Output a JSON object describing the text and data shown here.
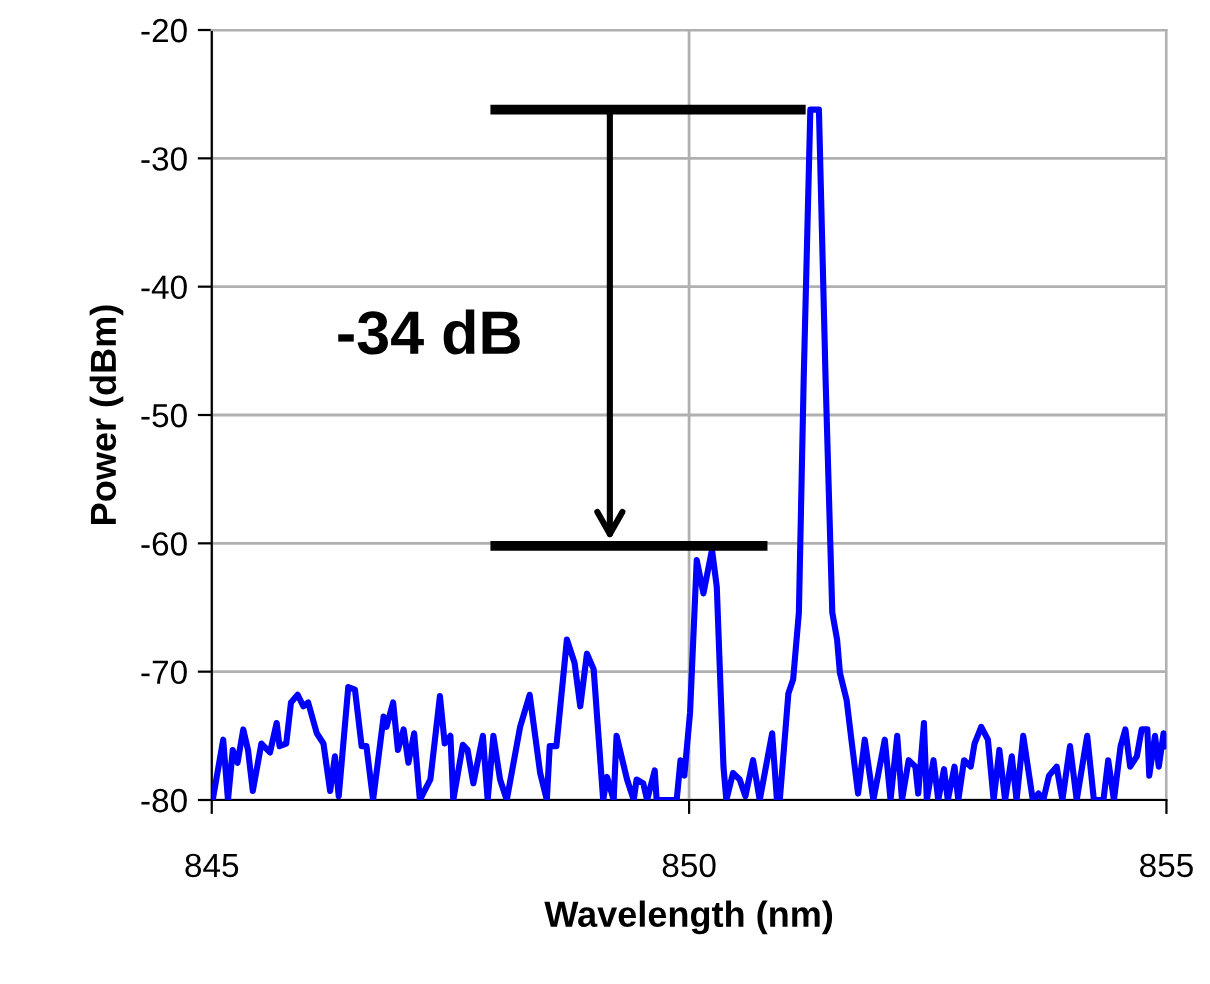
{
  "chart_data": {
    "type": "line",
    "xlabel": "Wavelength (nm)",
    "ylabel": "Power (dBm)",
    "xlim": [
      845,
      855
    ],
    "xticks": [
      845,
      850,
      855
    ],
    "ylim": [
      -80,
      -20
    ],
    "yticks": [
      -80,
      -70,
      -60,
      -50,
      -40,
      -30,
      -20
    ],
    "grid": true,
    "marker": "none",
    "line_style": "solid",
    "annotations": [
      "-34 dB"
    ],
    "ref_lines": [
      {
        "axis": "y",
        "value": -26.2,
        "color": "#000000"
      },
      {
        "axis": "y",
        "value": -60.2,
        "color": "#000000"
      }
    ],
    "series": [
      {
        "color": "#0000ff",
        "x": [
          845.0,
          845.01,
          845.12,
          845.17,
          845.22,
          845.27,
          845.33,
          845.38,
          845.43,
          845.52,
          845.61,
          845.68,
          845.71,
          845.78,
          845.83,
          845.9,
          845.96,
          846.01,
          846.1,
          846.17,
          846.24,
          846.29,
          846.33,
          846.43,
          846.5,
          846.57,
          846.62,
          846.69,
          846.8,
          846.83,
          846.9,
          846.95,
          847.01,
          847.06,
          847.12,
          847.18,
          847.29,
          847.39,
          847.44,
          847.5,
          847.53,
          847.63,
          847.68,
          847.74,
          847.84,
          847.89,
          847.95,
          848.02,
          848.09,
          848.23,
          848.33,
          848.44,
          848.51,
          848.54,
          848.61,
          848.72,
          848.8,
          848.86,
          848.93,
          849.0,
          849.1,
          849.14,
          849.21,
          849.24,
          849.35,
          849.42,
          849.45,
          849.52,
          849.56,
          849.64,
          849.66,
          849.73,
          849.87,
          849.91,
          849.95,
          850.01,
          850.08,
          850.15,
          850.24,
          850.29,
          850.36,
          850.39,
          850.46,
          850.53,
          850.59,
          850.67,
          850.74,
          850.87,
          850.92,
          850.95,
          851.04,
          851.09,
          851.15,
          851.2,
          851.27,
          851.36,
          851.43,
          851.5,
          851.55,
          851.58,
          851.65,
          851.7,
          851.77,
          851.84,
          851.93,
          852.05,
          852.11,
          852.18,
          852.23,
          852.3,
          852.37,
          852.4,
          852.46,
          852.49,
          852.56,
          852.61,
          852.67,
          852.71,
          852.78,
          852.82,
          852.88,
          852.95,
          852.99,
          853.06,
          853.13,
          853.19,
          853.25,
          853.31,
          853.38,
          853.43,
          853.5,
          853.6,
          853.66,
          853.71,
          853.77,
          853.85,
          853.91,
          853.99,
          854.06,
          854.17,
          854.24,
          854.34,
          854.39,
          854.45,
          854.52,
          854.57,
          854.62,
          854.69,
          854.74,
          854.8,
          854.82,
          854.88,
          854.92,
          854.97,
          855.0
        ],
        "values": [
          -80.0,
          -80.0,
          -75.3,
          -80.0,
          -76.1,
          -77.1,
          -74.5,
          -76.1,
          -79.3,
          -75.6,
          -76.3,
          -74.0,
          -75.8,
          -75.6,
          -72.4,
          -71.8,
          -72.7,
          -72.4,
          -74.8,
          -75.6,
          -79.3,
          -76.6,
          -79.7,
          -71.2,
          -71.4,
          -75.8,
          -75.8,
          -80.0,
          -73.5,
          -74.3,
          -72.4,
          -76.1,
          -74.5,
          -77.1,
          -74.8,
          -80.0,
          -78.4,
          -71.9,
          -75.6,
          -75.0,
          -80.0,
          -75.7,
          -76.1,
          -78.7,
          -75.0,
          -80.0,
          -75.0,
          -78.4,
          -80.0,
          -74.3,
          -71.8,
          -77.9,
          -80.0,
          -75.8,
          -75.8,
          -67.5,
          -69.3,
          -72.7,
          -68.6,
          -69.8,
          -80.0,
          -78.2,
          -80.0,
          -75.0,
          -78.4,
          -80.0,
          -78.4,
          -78.7,
          -80.0,
          -77.7,
          -80.0,
          -80.0,
          -80.0,
          -76.9,
          -78.1,
          -73.2,
          -61.3,
          -63.9,
          -60.5,
          -63.4,
          -77.4,
          -80.0,
          -77.9,
          -78.4,
          -79.7,
          -76.9,
          -80.0,
          -74.8,
          -80.0,
          -80.0,
          -71.7,
          -70.6,
          -65.4,
          -47.3,
          -26.2,
          -26.2,
          -47.3,
          -65.4,
          -67.5,
          -70.1,
          -72.2,
          -75.3,
          -79.5,
          -75.3,
          -80.0,
          -75.3,
          -80.0,
          -75.0,
          -80.0,
          -76.9,
          -77.4,
          -79.5,
          -74.0,
          -80.0,
          -76.9,
          -80.0,
          -77.6,
          -80.0,
          -77.4,
          -80.0,
          -76.9,
          -77.4,
          -75.6,
          -74.3,
          -75.3,
          -80.0,
          -76.1,
          -80.0,
          -76.6,
          -80.0,
          -75.0,
          -80.0,
          -79.5,
          -80.0,
          -78.1,
          -77.4,
          -80.0,
          -75.8,
          -80.0,
          -75.0,
          -80.0,
          -80.0,
          -76.9,
          -80.0,
          -75.8,
          -74.5,
          -77.4,
          -76.6,
          -74.5,
          -74.5,
          -78.1,
          -75.0,
          -77.4,
          -74.8,
          -75.8
        ]
      }
    ]
  }
}
